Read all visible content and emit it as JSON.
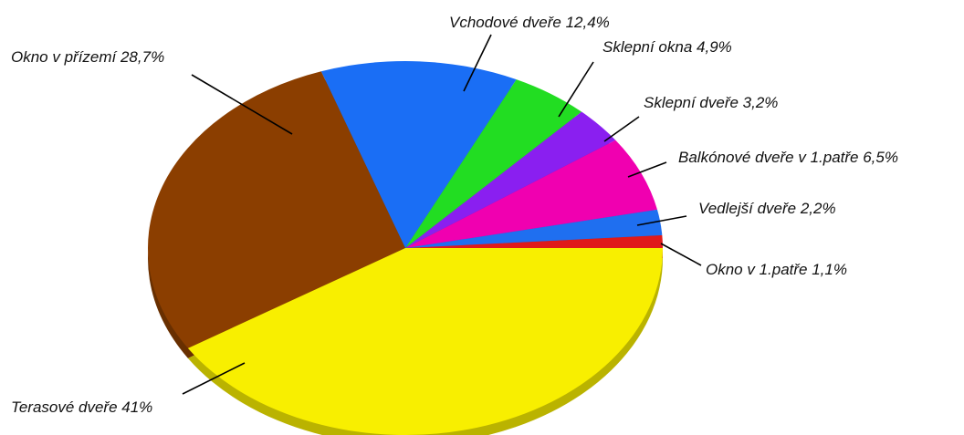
{
  "chart_data": {
    "type": "pie",
    "title": "",
    "legend": "none",
    "slices": [
      {
        "label": "Okno v 1.patře 1,1%",
        "value": 1.1,
        "color": "#e01a1a"
      },
      {
        "label": "Vedlejší dveře 2,2%",
        "value": 2.2,
        "color": "#1f6ff0"
      },
      {
        "label": "Balkónové dveře v 1.patře 6,5%",
        "value": 6.5,
        "color": "#f000b0"
      },
      {
        "label": "Sklepní dveře 3,2%",
        "value": 3.2,
        "color": "#8a1ff0"
      },
      {
        "label": "Sklepní okna 4,9%",
        "value": 4.9,
        "color": "#22dd22"
      },
      {
        "label": "Vchodové dveře 12,4%",
        "value": 12.4,
        "color": "#1a6ef5"
      },
      {
        "label": "Okno v přízemí 28,7%",
        "value": 28.7,
        "color": "#8b3e00"
      },
      {
        "label": "Terasové dveře 41%",
        "value": 41.0,
        "color": "#f8ef00"
      }
    ]
  }
}
